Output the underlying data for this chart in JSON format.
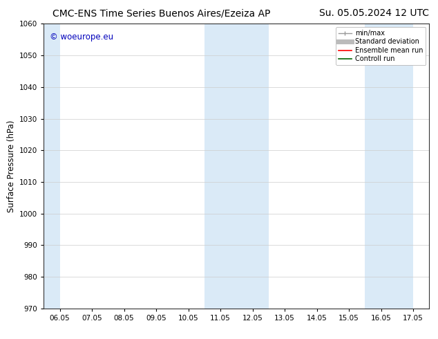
{
  "title_left": "CMC-ENS Time Series Buenos Aires/Ezeiza AP",
  "title_right": "Su. 05.05.2024 12 UTC",
  "ylabel": "Surface Pressure (hPa)",
  "ylim": [
    970,
    1060
  ],
  "yticks": [
    970,
    980,
    990,
    1000,
    1010,
    1020,
    1030,
    1040,
    1050,
    1060
  ],
  "xtick_labels": [
    "06.05",
    "07.05",
    "08.05",
    "09.05",
    "10.05",
    "11.05",
    "12.05",
    "13.05",
    "14.05",
    "15.05",
    "16.05",
    "17.05"
  ],
  "watermark": "© woeurope.eu",
  "shade_color": "#daeaf7",
  "background_color": "#ffffff",
  "legend_items": [
    {
      "label": "min/max",
      "color": "#999999",
      "lw": 1.0,
      "type": "line_with_caps"
    },
    {
      "label": "Standard deviation",
      "color": "#bbbbbb",
      "lw": 5,
      "type": "line"
    },
    {
      "label": "Ensemble mean run",
      "color": "#ff0000",
      "lw": 1.2,
      "type": "line"
    },
    {
      "label": "Controll run",
      "color": "#006400",
      "lw": 1.2,
      "type": "line"
    }
  ],
  "title_fontsize": 10,
  "axis_fontsize": 8.5,
  "tick_fontsize": 7.5,
  "watermark_color": "#0000bb",
  "watermark_fontsize": 8.5,
  "shaded_bands": [
    {
      "xmin": 0,
      "xmax": 0.5
    },
    {
      "xmin": 5.0,
      "xmax": 7.0
    },
    {
      "xmin": 10.0,
      "xmax": 11.5
    }
  ]
}
